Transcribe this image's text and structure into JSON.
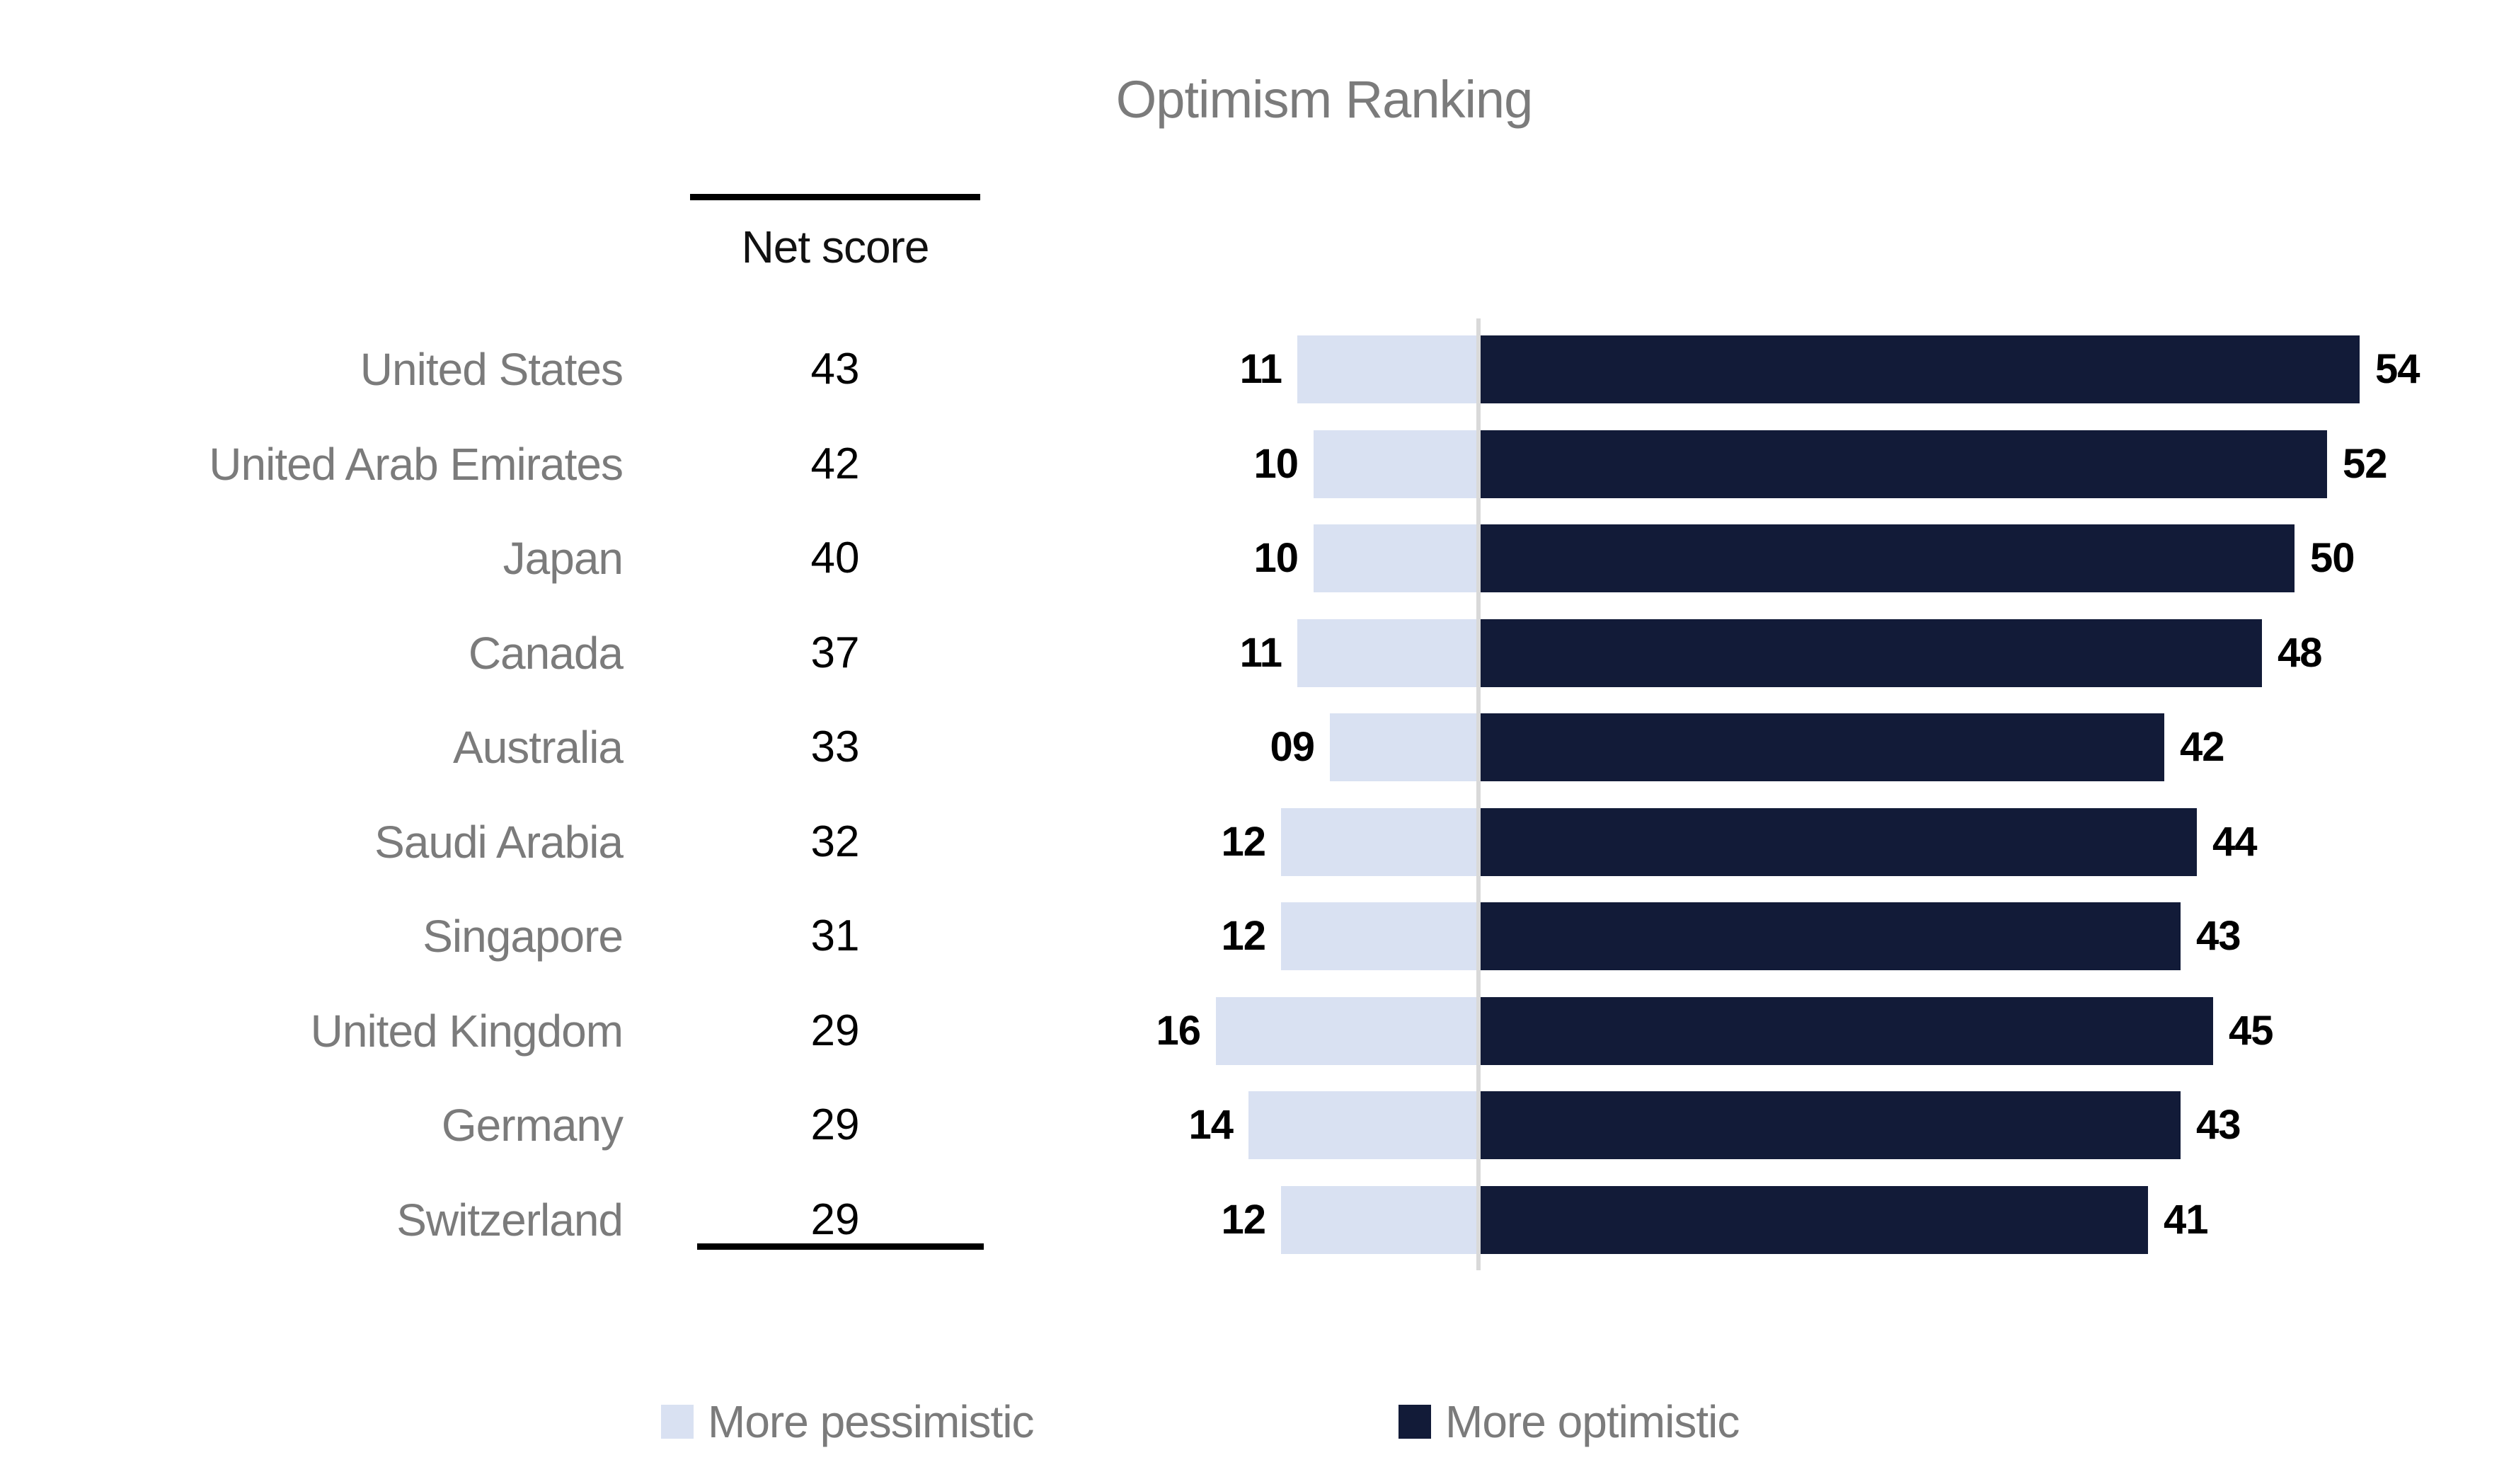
{
  "title": "Optimism Ranking",
  "table": {
    "header": "Net score"
  },
  "chart_data": {
    "type": "bar",
    "variant": "horizontal-diverging",
    "title": "Optimism Ranking",
    "categories": [
      "United States",
      "United Arab Emirates",
      "Japan",
      "Canada",
      "Australia",
      "Saudi Arabia",
      "Singapore",
      "United Kingdom",
      "Germany",
      "Switzerland"
    ],
    "net_scores": [
      "43",
      "42",
      "40",
      "37",
      "33",
      "32",
      "31",
      "29",
      "29",
      "29"
    ],
    "series": [
      {
        "name": "More pessimistic",
        "color": "#d9e1f2",
        "values": [
          11,
          10,
          10,
          11,
          9,
          12,
          12,
          16,
          14,
          12
        ],
        "labels": [
          "11",
          "10",
          "10",
          "11",
          "09",
          "12",
          "12",
          "16",
          "14",
          "12"
        ]
      },
      {
        "name": "More optimistic",
        "color": "#121b38",
        "values": [
          54,
          52,
          50,
          48,
          42,
          44,
          43,
          45,
          43,
          41
        ],
        "labels": [
          "54",
          "52",
          "50",
          "48",
          "42",
          "44",
          "43",
          "45",
          "43",
          "41"
        ]
      }
    ],
    "xlabel": "",
    "ylabel": "",
    "axis": {
      "zero_line_color": "#d9d9d9"
    },
    "grid": false,
    "legend_position": "bottom"
  },
  "legend": {
    "items": [
      {
        "label": "More pessimistic",
        "color": "#d9e1f2"
      },
      {
        "label": "More optimistic",
        "color": "#121b38"
      }
    ]
  },
  "colors": {
    "pessimistic": "#d9e1f2",
    "optimistic": "#121b38",
    "gray_text": "#7b7b7b",
    "black_text": "#000000",
    "table_rule": "#000000",
    "zero_line": "#d9d9d9",
    "background": "#ffffff"
  }
}
